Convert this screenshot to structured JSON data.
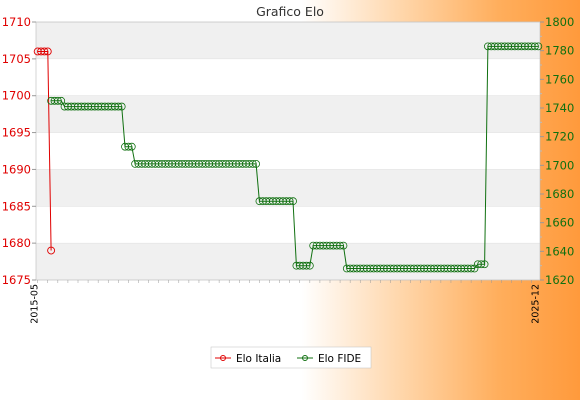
{
  "chart_data": {
    "type": "line",
    "title": "Grafico Elo",
    "xlabel": "",
    "ylabel_left": "",
    "ylabel_right": "",
    "ylim_left": [
      1675,
      1710
    ],
    "ylim_right": [
      1620,
      1800
    ],
    "yticks_left": [
      1675,
      1680,
      1685,
      1690,
      1695,
      1700,
      1705,
      1710
    ],
    "yticks_right": [
      1620,
      1640,
      1660,
      1680,
      1700,
      1720,
      1740,
      1760,
      1780,
      1800
    ],
    "grid": true,
    "legend_position": "bottom",
    "colors": {
      "italia": "#e00000",
      "fide": "#107010",
      "plot_band": "#f0f0f0"
    },
    "x_count": 150,
    "x_start_label": "2015-05",
    "x_end_label": "2025-12",
    "series": [
      {
        "name": "Elo Italia",
        "axis": "left",
        "points": [
          {
            "x": 0,
            "y": 1706
          },
          {
            "x": 1,
            "y": 1706
          },
          {
            "x": 2,
            "y": 1706
          },
          {
            "x": 3,
            "y": 1706
          },
          {
            "x": 4,
            "y": 1679
          }
        ]
      },
      {
        "name": "Elo FIDE",
        "axis": "right",
        "segments": [
          {
            "from": 4,
            "to": 8,
            "y": 1745
          },
          {
            "from": 8,
            "to": 26,
            "y": 1741
          },
          {
            "from": 26,
            "to": 29,
            "y": 1713
          },
          {
            "from": 29,
            "to": 66,
            "y": 1701
          },
          {
            "from": 66,
            "to": 77,
            "y": 1675
          },
          {
            "from": 77,
            "to": 82,
            "y": 1630
          },
          {
            "from": 82,
            "to": 92,
            "y": 1644
          },
          {
            "from": 92,
            "to": 131,
            "y": 1628
          },
          {
            "from": 131,
            "to": 134,
            "y": 1631
          },
          {
            "from": 134,
            "to": 150,
            "y": 1783
          }
        ]
      }
    ]
  }
}
